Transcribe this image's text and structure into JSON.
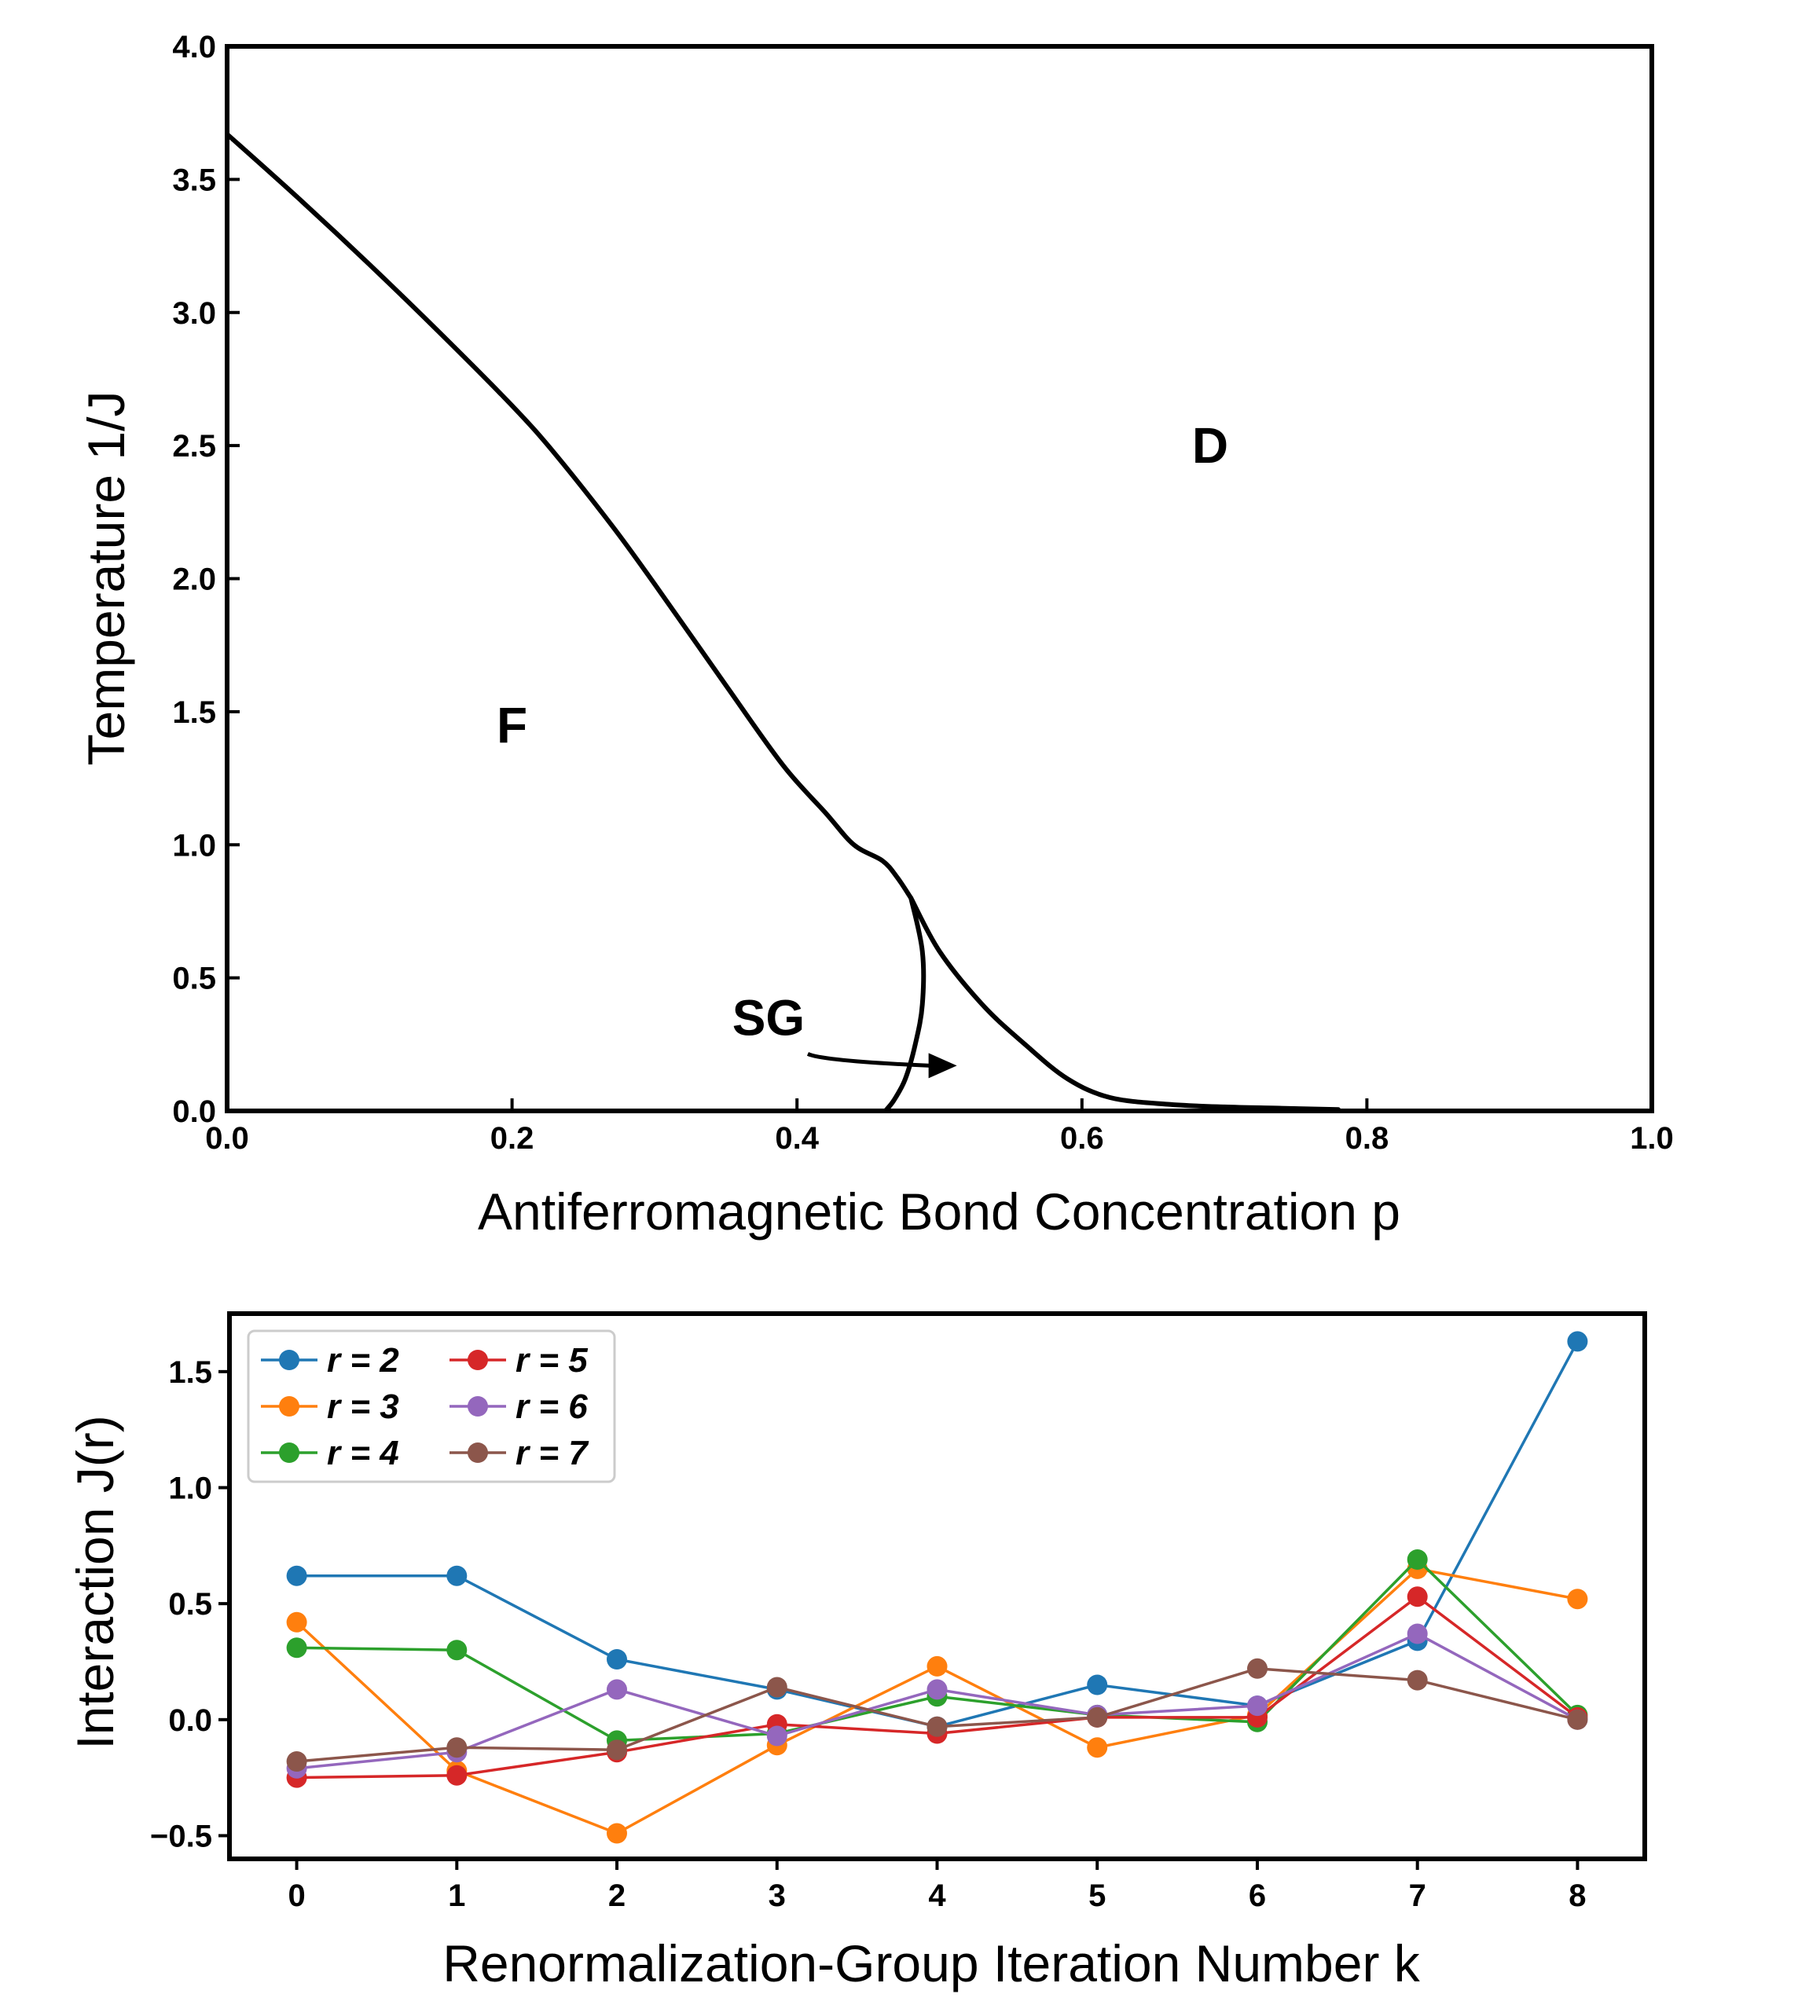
{
  "chart_data": [
    {
      "type": "line",
      "title": "",
      "xlabel": "Antiferromagnetic Bond Concentration p",
      "ylabel": "Temperature 1/J",
      "xlim": [
        0.0,
        1.0
      ],
      "ylim": [
        0.0,
        4.0
      ],
      "xticks": [
        "0.0",
        "0.2",
        "0.4",
        "0.6",
        "0.8",
        "1.0"
      ],
      "yticks": [
        "0.0",
        "0.5",
        "1.0",
        "1.5",
        "2.0",
        "2.5",
        "3.0",
        "3.5",
        "4.0"
      ],
      "grid": false,
      "series": [
        {
          "x": [
            0.0,
            0.05,
            0.1,
            0.15,
            0.2,
            0.23,
            0.27,
            0.3,
            0.35,
            0.39,
            0.42,
            0.44,
            0.46,
            0.47,
            0.48
          ],
          "y": [
            3.67,
            3.43,
            3.18,
            2.92,
            2.65,
            2.47,
            2.2,
            1.98,
            1.6,
            1.3,
            1.12,
            1.0,
            0.94,
            0.88,
            0.8
          ]
        },
        {
          "x": [
            0.48,
            0.5,
            0.53,
            0.56,
            0.59,
            0.62,
            0.66,
            0.7,
            0.74,
            0.78
          ],
          "y": [
            0.8,
            0.6,
            0.4,
            0.25,
            0.12,
            0.05,
            0.025,
            0.015,
            0.01,
            0.005
          ]
        },
        {
          "x": [
            0.48,
            0.488,
            0.488,
            0.483,
            0.476,
            0.468,
            0.462
          ],
          "y": [
            0.8,
            0.6,
            0.4,
            0.25,
            0.12,
            0.04,
            0.0
          ]
        }
      ],
      "annotations": [
        {
          "text": "F",
          "x": 0.2,
          "y": 1.45
        },
        {
          "text": "D",
          "x": 0.69,
          "y": 2.5
        },
        {
          "text": "SG",
          "x": 0.38,
          "y": 0.35,
          "arrow_to": [
            0.51,
            0.17
          ]
        }
      ]
    },
    {
      "type": "line",
      "title": "",
      "xlabel": "Renormalization-Group Iteration Number k",
      "ylabel": "Interaction J(r)",
      "xlim": [
        -0.42,
        8.42
      ],
      "ylim": [
        -0.6,
        1.75
      ],
      "categories": [
        0,
        1,
        2,
        3,
        4,
        5,
        6,
        7,
        8
      ],
      "xticks": [
        "0",
        "1",
        "2",
        "3",
        "4",
        "5",
        "6",
        "7",
        "8"
      ],
      "yticks": [
        "−0.5",
        "0.0",
        "0.5",
        "1.0",
        "1.5"
      ],
      "legend_placement": "top-left",
      "grid": false,
      "series": [
        {
          "name": "r = 2",
          "color": "#1f77b4",
          "values": [
            0.62,
            0.62,
            0.26,
            0.13,
            -0.03,
            0.15,
            0.06,
            0.34,
            1.63
          ]
        },
        {
          "name": "r = 3",
          "color": "#ff7f0e",
          "values": [
            0.42,
            -0.22,
            -0.49,
            -0.11,
            0.23,
            -0.12,
            0.02,
            0.65,
            0.52
          ]
        },
        {
          "name": "r = 4",
          "color": "#2ca02c",
          "values": [
            0.31,
            0.3,
            -0.09,
            -0.06,
            0.1,
            0.02,
            -0.01,
            0.69,
            0.02
          ]
        },
        {
          "name": "r = 5",
          "color": "#d62728",
          "values": [
            -0.25,
            -0.24,
            -0.14,
            -0.02,
            -0.06,
            0.01,
            0.01,
            0.53,
            0.01
          ]
        },
        {
          "name": "r = 6",
          "color": "#9467bd",
          "values": [
            -0.21,
            -0.14,
            0.13,
            -0.07,
            0.13,
            0.02,
            0.06,
            0.37,
            0.0
          ]
        },
        {
          "name": "r = 7",
          "color": "#8c564b",
          "values": [
            -0.18,
            -0.12,
            -0.13,
            0.14,
            -0.03,
            0.01,
            0.22,
            0.17,
            0.0
          ]
        }
      ]
    }
  ]
}
